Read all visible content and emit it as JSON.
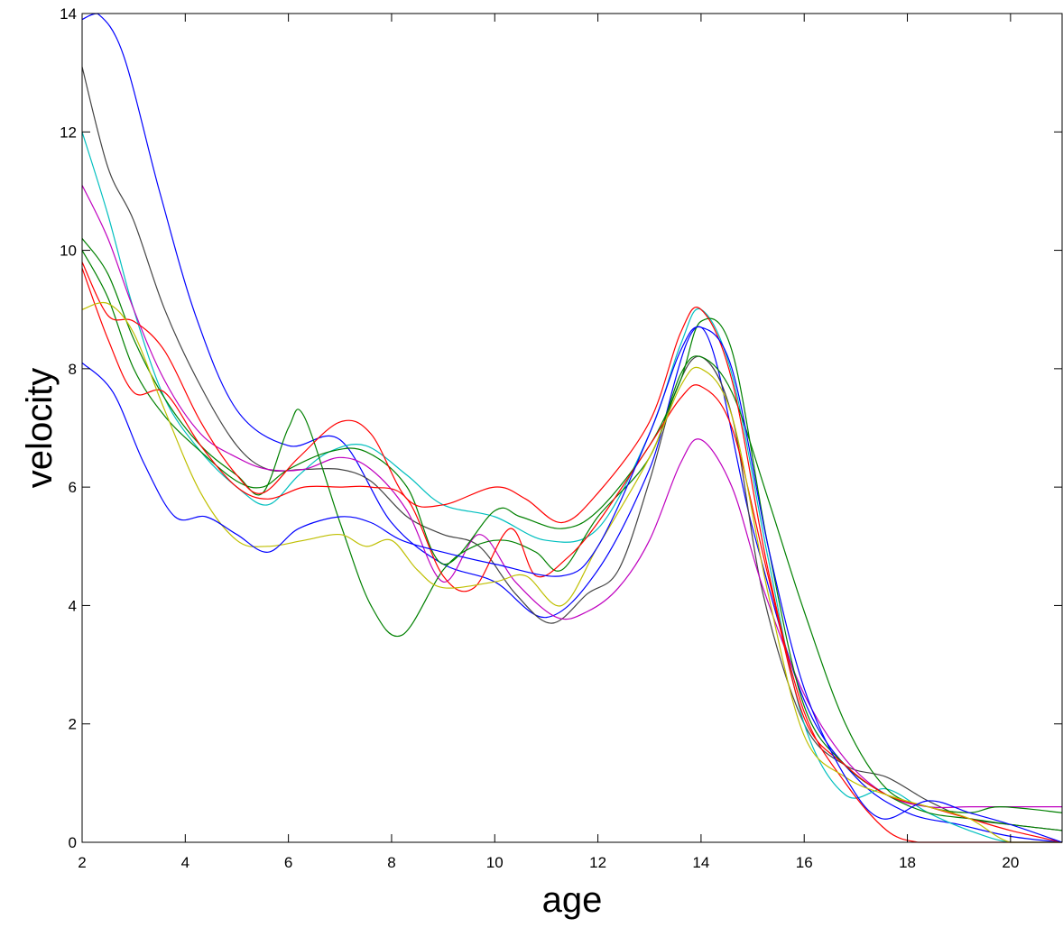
{
  "chart_data": {
    "type": "line",
    "title": "",
    "xlabel": "age",
    "ylabel": "velocity",
    "xlim": [
      2,
      21
    ],
    "ylim": [
      0,
      14
    ],
    "xticks": [
      2,
      4,
      6,
      8,
      10,
      12,
      14,
      16,
      18,
      20
    ],
    "yticks": [
      0,
      2,
      4,
      6,
      8,
      10,
      12,
      14
    ],
    "grid": false,
    "legend": "none",
    "series": [
      {
        "color": "#0000ff",
        "x": [
          2,
          2.3,
          2.8,
          3.5,
          4.2,
          5,
          6,
          7,
          8,
          9,
          10,
          11,
          12,
          13,
          14,
          15,
          16,
          17,
          18,
          19,
          20,
          21
        ],
        "y": [
          13.9,
          14.0,
          13.3,
          11.0,
          8.9,
          7.3,
          6.7,
          6.8,
          5.4,
          4.7,
          4.4,
          3.8,
          4.6,
          6.3,
          8.7,
          5.3,
          2.4,
          1.1,
          0.5,
          0.3,
          0.1,
          0.0
        ]
      },
      {
        "color": "#444444",
        "x": [
          2,
          2.5,
          3,
          3.6,
          4.3,
          5,
          5.6,
          6.3,
          7,
          7.6,
          8.3,
          9,
          9.7,
          10.4,
          11.1,
          11.8,
          12.4,
          13,
          13.5,
          14,
          14.6,
          15.2,
          16,
          16.8,
          17.6,
          18.4,
          19.2,
          20,
          21
        ],
        "y": [
          13.1,
          11.4,
          10.5,
          9.0,
          7.7,
          6.7,
          6.3,
          6.3,
          6.3,
          6.1,
          5.5,
          5.2,
          5.0,
          4.2,
          3.7,
          4.2,
          4.6,
          6.1,
          7.6,
          8.2,
          7.2,
          4.2,
          2.0,
          1.3,
          1.1,
          0.7,
          0.4,
          0.3,
          0.2
        ]
      },
      {
        "color": "#00bfbf",
        "x": [
          2,
          2.5,
          3,
          3.6,
          4.3,
          5,
          5.6,
          6.2,
          6.8,
          7.5,
          8.3,
          9,
          10,
          11,
          12,
          13,
          13.6,
          14,
          14.6,
          15.3,
          16,
          16.8,
          17.6,
          18.4,
          19.2,
          20,
          21
        ],
        "y": [
          12.0,
          10.6,
          9.0,
          7.5,
          6.6,
          6.0,
          5.7,
          6.2,
          6.6,
          6.7,
          6.2,
          5.7,
          5.5,
          5.1,
          5.3,
          6.9,
          8.4,
          9.0,
          7.9,
          4.8,
          2.0,
          0.8,
          0.9,
          0.5,
          0.2,
          0.0,
          0.0
        ]
      },
      {
        "color": "#bf00bf",
        "x": [
          2,
          2.5,
          3,
          3.6,
          4.3,
          5,
          5.6,
          6.3,
          7,
          7.6,
          8.3,
          9,
          9.7,
          10.4,
          11.2,
          11.8,
          12.4,
          13,
          13.6,
          14,
          14.6,
          15.2,
          16,
          16.8,
          17.6,
          18.4,
          19.2,
          20,
          21
        ],
        "y": [
          11.1,
          10.2,
          9.0,
          7.8,
          6.9,
          6.5,
          6.3,
          6.3,
          6.5,
          6.3,
          5.6,
          4.4,
          5.2,
          4.4,
          3.8,
          3.9,
          4.3,
          5.1,
          6.4,
          6.8,
          6.0,
          4.3,
          2.5,
          1.4,
          0.8,
          0.6,
          0.6,
          0.6,
          0.6
        ]
      },
      {
        "color": "#008000",
        "x": [
          2,
          2.5,
          3,
          3.6,
          4.3,
          5,
          5.5,
          6,
          6.3,
          7,
          7.6,
          8.2,
          9,
          9.6,
          10.2,
          10.8,
          11.3,
          12,
          13,
          13.6,
          14,
          14.6,
          15.3,
          16,
          16.8,
          17.6,
          18.4,
          19.2,
          19.8,
          21
        ],
        "y": [
          10.2,
          9.6,
          8.5,
          7.5,
          6.7,
          6.2,
          5.9,
          7.0,
          7.2,
          5.4,
          4.0,
          3.5,
          4.6,
          5.0,
          5.1,
          4.9,
          4.6,
          5.5,
          6.5,
          7.9,
          8.2,
          7.6,
          5.8,
          3.9,
          2.0,
          0.9,
          0.6,
          0.5,
          0.6,
          0.5
        ]
      },
      {
        "color": "#008000",
        "x": [
          2,
          2.5,
          3,
          3.6,
          4.3,
          5,
          5.5,
          6,
          6.8,
          7.5,
          8.3,
          9,
          10,
          10.5,
          11.3,
          12,
          13,
          13.6,
          14,
          14.6,
          15.3,
          16,
          16.8,
          17.6,
          18.4,
          19.2,
          20,
          21
        ],
        "y": [
          10.0,
          9.2,
          8.0,
          7.2,
          6.6,
          6.1,
          6.0,
          6.3,
          6.6,
          6.6,
          6.0,
          4.7,
          5.6,
          5.5,
          5.3,
          5.6,
          6.7,
          7.8,
          8.8,
          8.3,
          5.0,
          2.3,
          1.3,
          0.8,
          0.5,
          0.4,
          0.3,
          0.2
        ]
      },
      {
        "color": "#ff0000",
        "x": [
          2,
          2.5,
          3,
          3.6,
          4.3,
          5,
          5.5,
          6.2,
          7,
          7.6,
          8.3,
          9,
          10,
          10.6,
          11.3,
          12,
          13,
          13.6,
          14,
          14.6,
          15.3,
          16,
          16.8,
          17.6,
          18.2,
          18.6,
          21
        ],
        "y": [
          9.8,
          8.9,
          8.8,
          8.3,
          7.1,
          6.2,
          5.9,
          6.5,
          7.1,
          6.9,
          5.8,
          5.7,
          6.0,
          5.8,
          5.4,
          5.9,
          7.1,
          8.6,
          9.0,
          7.8,
          4.6,
          2.2,
          1.0,
          0.2,
          0.0,
          0.0,
          0.0
        ]
      },
      {
        "color": "#ff0000",
        "x": [
          2,
          2.5,
          3,
          3.6,
          4.3,
          5,
          5.6,
          6.3,
          7,
          7.6,
          8.3,
          9,
          9.6,
          10.3,
          10.8,
          11.4,
          12,
          13,
          13.6,
          14,
          14.6,
          15.3,
          16,
          16.8,
          17.6,
          18.4,
          19.2,
          20,
          21
        ],
        "y": [
          9.7,
          8.5,
          7.6,
          7.6,
          6.7,
          6.0,
          5.8,
          6.0,
          6.0,
          6.0,
          5.8,
          4.5,
          4.3,
          5.3,
          4.5,
          4.8,
          5.4,
          6.7,
          7.5,
          7.7,
          7.0,
          4.5,
          2.1,
          1.3,
          0.8,
          0.6,
          0.4,
          0.2,
          0.0
        ]
      },
      {
        "color": "#bfbf00",
        "x": [
          2,
          2.5,
          3,
          3.6,
          4.3,
          5,
          5.6,
          6.3,
          7,
          7.5,
          8,
          8.5,
          9,
          10,
          10.6,
          11.3,
          12,
          13,
          13.6,
          14,
          14.6,
          15.3,
          16,
          16.8,
          17.6,
          18.4,
          19.2,
          20,
          21
        ],
        "y": [
          9.0,
          9.1,
          8.6,
          7.3,
          5.9,
          5.1,
          5.0,
          5.1,
          5.2,
          5.0,
          5.1,
          4.6,
          4.3,
          4.4,
          4.5,
          4.0,
          5.0,
          6.5,
          7.7,
          8.0,
          7.2,
          4.2,
          1.8,
          1.1,
          0.8,
          0.6,
          0.4,
          0.0,
          0.0
        ]
      },
      {
        "color": "#0000ff",
        "x": [
          2,
          2.6,
          3.2,
          3.8,
          4.4,
          5,
          5.6,
          6.2,
          7,
          7.6,
          8.2,
          9,
          10,
          11.3,
          12,
          13,
          13.6,
          14,
          14.6,
          15.3,
          16,
          16.8,
          17.5,
          18.4,
          19.2,
          20,
          21
        ],
        "y": [
          8.1,
          7.6,
          6.4,
          5.5,
          5.5,
          5.2,
          4.9,
          5.3,
          5.5,
          5.4,
          5.1,
          4.9,
          4.7,
          4.5,
          5.0,
          6.9,
          8.3,
          8.7,
          8.0,
          5.0,
          2.6,
          1.1,
          0.4,
          0.7,
          0.5,
          0.3,
          0.0
        ]
      }
    ]
  }
}
